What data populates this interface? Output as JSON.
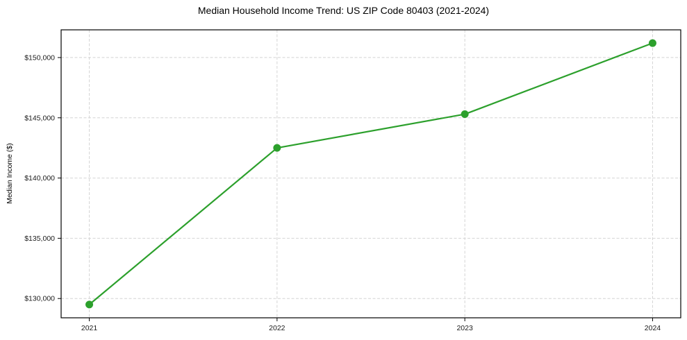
{
  "chart_data": {
    "type": "line",
    "title": "Median Household Income Trend: US ZIP Code 80403 (2021-2024)",
    "xlabel": "",
    "ylabel": "Median Income ($)",
    "x": [
      2021,
      2022,
      2023,
      2024
    ],
    "values": [
      129500,
      142500,
      145300,
      151200
    ],
    "x_tick_labels": [
      "2021",
      "2022",
      "2023",
      "2024"
    ],
    "y_ticks": [
      {
        "value": 130000,
        "label": "$130,000"
      },
      {
        "value": 135000,
        "label": "$135,000"
      },
      {
        "value": 140000,
        "label": "$140,000"
      },
      {
        "value": 145000,
        "label": "$145,000"
      },
      {
        "value": 150000,
        "label": "$150,000"
      }
    ],
    "xlim": [
      2020.85,
      2024.15
    ],
    "ylim": [
      128400,
      152300
    ],
    "grid": "dashed",
    "legend": "none",
    "line_color": "#2ca02c",
    "marker_color": "#2ca02c",
    "background": "#ffffff"
  }
}
